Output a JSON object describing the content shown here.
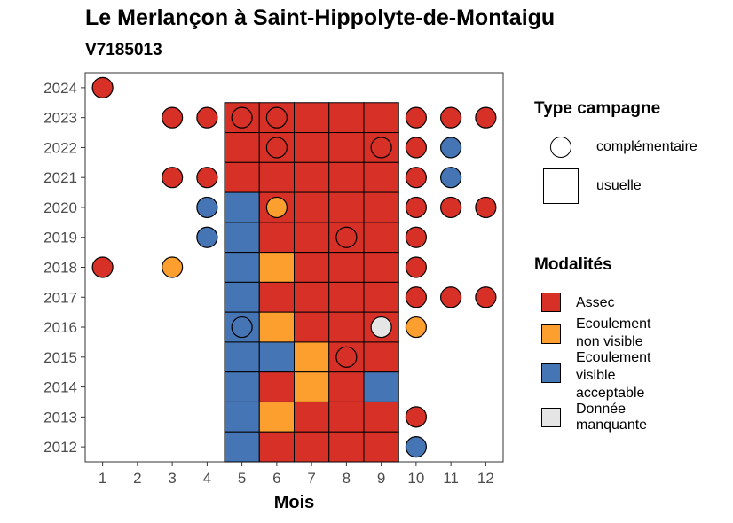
{
  "title": "Le Merlançon à Saint-Hippolyte-de-Montaigu",
  "subtitle": "V7185013",
  "chart_data": {
    "type": "heatmap",
    "xlabel": "Mois",
    "ylabel": "",
    "x_ticks": [
      1,
      2,
      3,
      4,
      5,
      6,
      7,
      8,
      9,
      10,
      11,
      12
    ],
    "y_ticks": [
      2012,
      2013,
      2014,
      2015,
      2016,
      2017,
      2018,
      2019,
      2020,
      2021,
      2022,
      2023,
      2024
    ],
    "xlim": [
      0.5,
      12.5
    ],
    "ylim": [
      2011.5,
      2024.5
    ],
    "colors": {
      "Assec": "#d73027",
      "Ecoulement non visible": "#fc9f2f",
      "Ecoulement visible acceptable": "#4575b4",
      "Donnée manquante": "#e5e5e5"
    },
    "usuelle": [
      {
        "year": 2023,
        "months": [
          "Assec",
          "Assec",
          "Assec",
          "Assec",
          "Assec"
        ]
      },
      {
        "year": 2022,
        "months": [
          "Assec",
          "Assec",
          "Assec",
          "Assec",
          "Assec"
        ]
      },
      {
        "year": 2021,
        "months": [
          "Assec",
          "Assec",
          "Assec",
          "Assec",
          "Assec"
        ]
      },
      {
        "year": 2020,
        "months": [
          "Ecoulement visible acceptable",
          "Assec",
          "Assec",
          "Assec",
          "Assec"
        ]
      },
      {
        "year": 2019,
        "months": [
          "Ecoulement visible acceptable",
          "Assec",
          "Assec",
          "Assec",
          "Assec"
        ]
      },
      {
        "year": 2018,
        "months": [
          "Ecoulement visible acceptable",
          "Ecoulement non visible",
          "Assec",
          "Assec",
          "Assec"
        ]
      },
      {
        "year": 2017,
        "months": [
          "Ecoulement visible acceptable",
          "Assec",
          "Assec",
          "Assec",
          "Assec"
        ]
      },
      {
        "year": 2016,
        "months": [
          "Ecoulement visible acceptable",
          "Ecoulement non visible",
          "Assec",
          "Assec",
          "Assec"
        ]
      },
      {
        "year": 2015,
        "months": [
          "Ecoulement visible acceptable",
          "Ecoulement visible acceptable",
          "Ecoulement non visible",
          "Assec",
          "Assec"
        ]
      },
      {
        "year": 2014,
        "months": [
          "Ecoulement visible acceptable",
          "Assec",
          "Ecoulement non visible",
          "Assec",
          "Ecoulement visible acceptable"
        ]
      },
      {
        "year": 2013,
        "months": [
          "Ecoulement visible acceptable",
          "Ecoulement non visible",
          "Assec",
          "Assec",
          "Assec"
        ]
      },
      {
        "year": 2012,
        "months": [
          "Ecoulement visible acceptable",
          "Assec",
          "Assec",
          "Assec",
          "Assec"
        ]
      }
    ],
    "usuelle_months": [
      5,
      6,
      7,
      8,
      9
    ],
    "complementaire": [
      {
        "year": 2024,
        "month": 1,
        "value": "Assec"
      },
      {
        "year": 2023,
        "month": 3,
        "value": "Assec"
      },
      {
        "year": 2023,
        "month": 4,
        "value": "Assec"
      },
      {
        "year": 2023,
        "month": 5,
        "value": "Assec"
      },
      {
        "year": 2023,
        "month": 6,
        "value": "Assec"
      },
      {
        "year": 2023,
        "month": 10,
        "value": "Assec"
      },
      {
        "year": 2023,
        "month": 11,
        "value": "Assec"
      },
      {
        "year": 2023,
        "month": 12,
        "value": "Assec"
      },
      {
        "year": 2022,
        "month": 6,
        "value": "Assec"
      },
      {
        "year": 2022,
        "month": 9,
        "value": "Assec"
      },
      {
        "year": 2022,
        "month": 10,
        "value": "Assec"
      },
      {
        "year": 2022,
        "month": 11,
        "value": "Ecoulement visible acceptable"
      },
      {
        "year": 2021,
        "month": 3,
        "value": "Assec"
      },
      {
        "year": 2021,
        "month": 4,
        "value": "Assec"
      },
      {
        "year": 2021,
        "month": 10,
        "value": "Assec"
      },
      {
        "year": 2021,
        "month": 11,
        "value": "Ecoulement visible acceptable"
      },
      {
        "year": 2020,
        "month": 4,
        "value": "Ecoulement visible acceptable"
      },
      {
        "year": 2020,
        "month": 6,
        "value": "Ecoulement non visible"
      },
      {
        "year": 2020,
        "month": 10,
        "value": "Assec"
      },
      {
        "year": 2020,
        "month": 11,
        "value": "Assec"
      },
      {
        "year": 2020,
        "month": 12,
        "value": "Assec"
      },
      {
        "year": 2019,
        "month": 4,
        "value": "Ecoulement visible acceptable"
      },
      {
        "year": 2019,
        "month": 8,
        "value": "Assec"
      },
      {
        "year": 2019,
        "month": 10,
        "value": "Assec"
      },
      {
        "year": 2018,
        "month": 1,
        "value": "Assec"
      },
      {
        "year": 2018,
        "month": 3,
        "value": "Ecoulement non visible"
      },
      {
        "year": 2018,
        "month": 10,
        "value": "Assec"
      },
      {
        "year": 2017,
        "month": 10,
        "value": "Assec"
      },
      {
        "year": 2017,
        "month": 11,
        "value": "Assec"
      },
      {
        "year": 2017,
        "month": 12,
        "value": "Assec"
      },
      {
        "year": 2016,
        "month": 5,
        "value": "Ecoulement visible acceptable"
      },
      {
        "year": 2016,
        "month": 9,
        "value": "Donnée manquante"
      },
      {
        "year": 2016,
        "month": 10,
        "value": "Ecoulement non visible"
      },
      {
        "year": 2015,
        "month": 8,
        "value": "Assec"
      },
      {
        "year": 2013,
        "month": 10,
        "value": "Assec"
      },
      {
        "year": 2012,
        "month": 10,
        "value": "Ecoulement visible acceptable"
      }
    ]
  },
  "legend": {
    "campaign_title": "Type campagne",
    "campaign_items": [
      {
        "label": "complémentaire",
        "symbol": "circle"
      },
      {
        "label": "usuelle",
        "symbol": "square"
      }
    ],
    "modalities_title": "Modalités",
    "modalities_items": [
      {
        "lines": [
          "Assec"
        ],
        "color": "#d73027"
      },
      {
        "lines": [
          "Ecoulement",
          "non visible"
        ],
        "color": "#fc9f2f"
      },
      {
        "lines": [
          "Ecoulement",
          "visible",
          "acceptable"
        ],
        "color": "#4575b4"
      },
      {
        "lines": [
          "Donnée",
          "manquante"
        ],
        "color": "#e5e5e5"
      }
    ]
  }
}
